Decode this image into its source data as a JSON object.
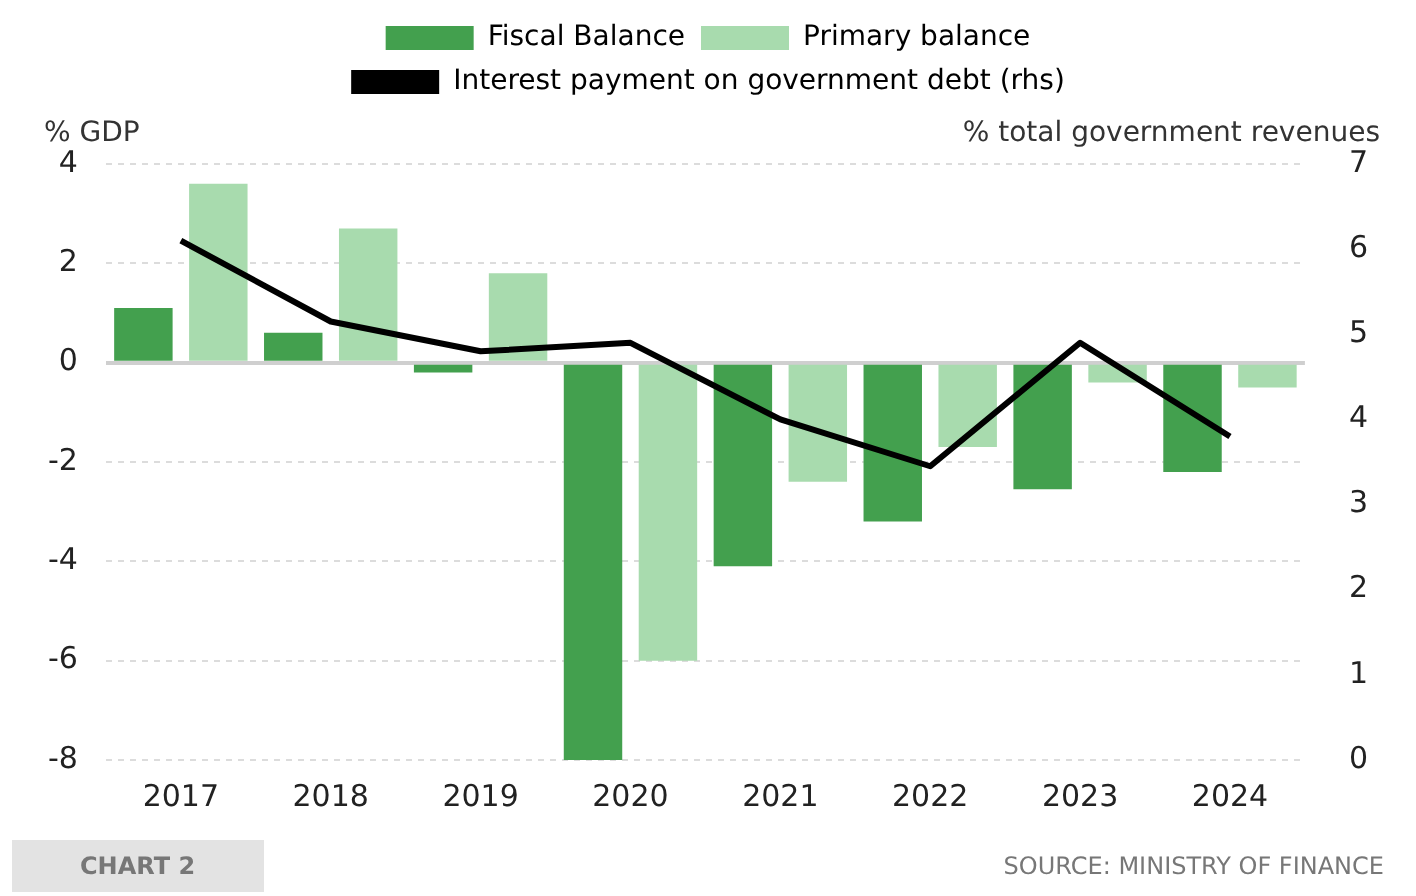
{
  "chart_data": {
    "type": "bar",
    "ylabel": "% GDP",
    "y2label": "% total government revenues",
    "categories": [
      "2017",
      "2018",
      "2019",
      "2020",
      "2021",
      "2022",
      "2023",
      "2024"
    ],
    "series": [
      {
        "name": "Fiscal Balance",
        "color": "#43a04e",
        "values": [
          1.1,
          0.6,
          -0.2,
          -8.0,
          -4.1,
          -3.2,
          -2.55,
          -2.2
        ]
      },
      {
        "name": "Primary balance",
        "color": "#a8dbae",
        "values": [
          3.6,
          2.7,
          1.8,
          -6.0,
          -2.4,
          -1.7,
          -0.4,
          -0.5
        ]
      },
      {
        "name": "Interest payment on government debt (rhs)",
        "type": "line",
        "axis": "y2",
        "color": "#000000",
        "values": [
          6.1,
          5.15,
          4.8,
          4.9,
          4.0,
          3.45,
          4.9,
          3.8
        ]
      }
    ],
    "ylim": [
      -8,
      4
    ],
    "yticks": [
      -8,
      -6,
      -4,
      -2,
      0,
      2,
      4
    ],
    "y2lim": [
      0,
      7
    ],
    "y2ticks": [
      0,
      1,
      2,
      3,
      4,
      5,
      6,
      7
    ],
    "grid": "y",
    "legend": "top",
    "marker": "none",
    "annotations": [
      "CHART 2",
      "SOURCE: MINISTRY OF FINANCE"
    ]
  }
}
